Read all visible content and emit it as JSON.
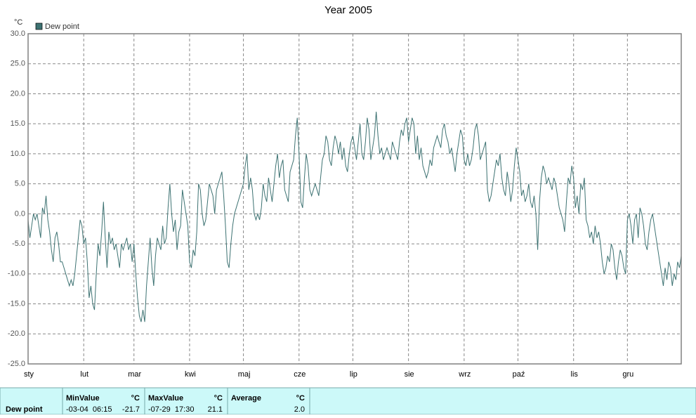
{
  "chart_data": {
    "type": "line",
    "title": "Year 2005",
    "y_unit": "°C",
    "categories": [
      "sty",
      null,
      null,
      null,
      null,
      null,
      null,
      null,
      null,
      null,
      null,
      null,
      null,
      null,
      null,
      null,
      null,
      null,
      null,
      null,
      null,
      null,
      null,
      null,
      null,
      null,
      null,
      null,
      null,
      null,
      null,
      "lut",
      null,
      null,
      null,
      null,
      null,
      null,
      null,
      null,
      null,
      null,
      null,
      null,
      null,
      null,
      null,
      null,
      null,
      null,
      null,
      null,
      null,
      null,
      null,
      null,
      null,
      null,
      null,
      "mar",
      null,
      null,
      null,
      null,
      null,
      null,
      null,
      null,
      null,
      null,
      null,
      null,
      null,
      null,
      null,
      null,
      null,
      null,
      null,
      null,
      null,
      null,
      null,
      null,
      null,
      null,
      null,
      null,
      null,
      null,
      "kwi",
      null,
      null,
      null,
      null,
      null,
      null,
      null,
      null,
      null,
      null,
      null,
      null,
      null,
      null,
      null,
      null,
      null,
      null,
      null,
      null,
      null,
      null,
      null,
      null,
      null,
      null,
      null,
      null,
      null,
      "maj",
      null,
      null,
      null,
      null,
      null,
      null,
      null,
      null,
      null,
      null,
      null,
      null,
      null,
      null,
      null,
      null,
      null,
      null,
      null,
      null,
      null,
      null,
      null,
      null,
      null,
      null,
      null,
      null,
      null,
      null,
      "cze",
      null,
      null,
      null,
      null,
      null,
      null,
      null,
      null,
      null,
      null,
      null,
      null,
      null,
      null,
      null,
      null,
      null,
      null,
      null,
      null,
      null,
      null,
      null,
      null,
      null,
      null,
      null,
      null,
      null,
      "lip",
      null,
      null,
      null,
      null,
      null,
      null,
      null,
      null,
      null,
      null,
      null,
      null,
      null,
      null,
      null,
      null,
      null,
      null,
      null,
      null,
      null,
      null,
      null,
      null,
      null,
      null,
      null,
      null,
      null,
      null,
      "sie",
      null,
      null,
      null,
      null,
      null,
      null,
      null,
      null,
      null,
      null,
      null,
      null,
      null,
      null,
      null,
      null,
      null,
      null,
      null,
      null,
      null,
      null,
      null,
      null,
      null,
      null,
      null,
      null,
      null,
      null,
      "wrz",
      null,
      null,
      null,
      null,
      null,
      null,
      null,
      null,
      null,
      null,
      null,
      null,
      null,
      null,
      null,
      null,
      null,
      null,
      null,
      null,
      null,
      null,
      null,
      null,
      null,
      null,
      null,
      null,
      null,
      "paź",
      null,
      null,
      null,
      null,
      null,
      null,
      null,
      null,
      null,
      null,
      null,
      null,
      null,
      null,
      null,
      null,
      null,
      null,
      null,
      null,
      null,
      null,
      null,
      null,
      null,
      null,
      null,
      null,
      null,
      null,
      "lis",
      null,
      null,
      null,
      null,
      null,
      null,
      null,
      null,
      null,
      null,
      null,
      null,
      null,
      null,
      null,
      null,
      null,
      null,
      null,
      null,
      null,
      null,
      null,
      null,
      null,
      null,
      null,
      null,
      null,
      "gru",
      null,
      null,
      null,
      null,
      null,
      null,
      null,
      null,
      null,
      null,
      null,
      null,
      null,
      null,
      null,
      null,
      null,
      null,
      null,
      null,
      null,
      null,
      null,
      null,
      null,
      null,
      null,
      null,
      null,
      null
    ],
    "series": [
      {
        "name": "Dew point",
        "color": "#3d7272",
        "values": [
          -1,
          -4,
          -2,
          0,
          -1,
          0,
          -2,
          -4,
          1,
          0,
          3,
          -1,
          -3,
          -6,
          -8,
          -4,
          -3,
          -5,
          -8,
          -8,
          -9,
          -10,
          -11,
          -12,
          -11,
          -12,
          -10,
          -7,
          -4,
          -1,
          -2,
          -5,
          -4,
          -8,
          -14,
          -12,
          -15,
          -16,
          -10,
          -5,
          -7,
          -3,
          2,
          -4,
          -9,
          -3,
          -5,
          -4,
          -6,
          -5,
          -7,
          -9,
          -5,
          -6,
          -5,
          -4,
          -6,
          -5,
          -8,
          -5,
          -10,
          -14,
          -17,
          -18,
          -16,
          -18,
          -12,
          -8,
          -4,
          -9,
          -12,
          -7,
          -4,
          -5,
          -6,
          -2,
          -5,
          -4,
          1,
          5,
          0,
          -3,
          -1,
          -6,
          -3,
          -2,
          4,
          2,
          0,
          -2,
          -8,
          -9,
          -6,
          -7,
          -3,
          5,
          4,
          0,
          -2,
          -1,
          2,
          5,
          4,
          3,
          0,
          4,
          5,
          6,
          7,
          3,
          -2,
          -8,
          -9,
          -5,
          -2,
          0,
          1,
          2,
          3,
          4,
          5,
          8,
          10,
          4,
          6,
          4,
          0,
          -1,
          0,
          -1,
          1,
          5,
          3,
          2,
          6,
          4,
          2,
          5,
          8,
          10,
          6,
          8,
          9,
          4,
          3,
          2,
          7,
          8,
          9,
          13,
          16,
          10,
          2,
          1,
          6,
          10,
          8,
          4,
          3,
          4,
          5,
          4,
          3,
          6,
          9,
          10,
          13,
          12,
          9,
          8,
          11,
          13,
          12,
          10,
          12,
          9,
          11,
          8,
          7,
          10,
          12,
          13,
          11,
          9,
          12,
          15,
          10,
          9,
          12,
          16,
          14,
          9,
          11,
          13,
          17,
          13,
          10,
          11,
          9,
          10,
          11,
          10,
          9,
          12,
          11,
          10,
          9,
          12,
          14,
          13,
          15,
          16,
          12,
          14,
          16,
          15,
          10,
          13,
          9,
          11,
          8,
          7,
          6,
          7,
          9,
          8,
          11,
          12,
          13,
          12,
          11,
          14,
          15,
          13,
          12,
          10,
          11,
          9,
          7,
          10,
          12,
          14,
          13,
          9,
          8,
          10,
          8,
          9,
          11,
          14,
          15,
          13,
          9,
          10,
          11,
          12,
          4,
          2,
          3,
          5,
          7,
          9,
          8,
          10,
          6,
          4,
          3,
          7,
          5,
          2,
          4,
          8,
          11,
          9,
          7,
          3,
          4,
          2,
          3,
          5,
          2,
          1,
          3,
          0,
          -6,
          2,
          6,
          8,
          7,
          5,
          6,
          5,
          4,
          6,
          5,
          3,
          1,
          0,
          -1,
          -3,
          2,
          6,
          5,
          8,
          6,
          1,
          3,
          0,
          5,
          4,
          6,
          -1,
          -2,
          -4,
          -3,
          -5,
          -2,
          -4,
          -3,
          -5,
          -8,
          -10,
          -9,
          -7,
          -8,
          -5,
          -6,
          -9,
          -11,
          -8,
          -6,
          -7,
          -9,
          -10,
          -1,
          0,
          -2,
          -5,
          -1,
          0,
          -4,
          1,
          0,
          -2,
          -5,
          -6,
          -3,
          -1,
          0,
          -2,
          -4,
          -6,
          -8,
          -10,
          -12,
          -9,
          -11,
          -8,
          -9,
          -12,
          -10,
          -11,
          -8,
          -9,
          -7
        ]
      }
    ],
    "ylim": [
      -25,
      30
    ],
    "yticks": [
      {
        "value": -25,
        "label": "-25.0"
      },
      {
        "value": -20,
        "label": "-20.0"
      },
      {
        "value": -15,
        "label": "-15.0"
      },
      {
        "value": -10,
        "label": "-10.0"
      },
      {
        "value": -5,
        "label": "-5.0"
      },
      {
        "value": 0,
        "label": "0.0"
      },
      {
        "value": 5,
        "label": "5.0"
      },
      {
        "value": 10,
        "label": "10.0"
      },
      {
        "value": 15,
        "label": "15.0"
      },
      {
        "value": 20,
        "label": "20.0"
      },
      {
        "value": 25,
        "label": "25.0"
      },
      {
        "value": 30,
        "label": "30.0"
      }
    ],
    "grid": true,
    "legend": "top-left"
  },
  "stats": {
    "row_label": "Dew point",
    "columns": [
      {
        "title": "MinValue",
        "unit": "°C",
        "time": "-03-04  06:15",
        "value": "-21.7"
      },
      {
        "title": "MaxValue",
        "unit": "°C",
        "time": "-07-29  17:30",
        "value": "21.1"
      },
      {
        "title": "Average",
        "unit": "°C",
        "time": "",
        "value": "2.0"
      }
    ]
  }
}
